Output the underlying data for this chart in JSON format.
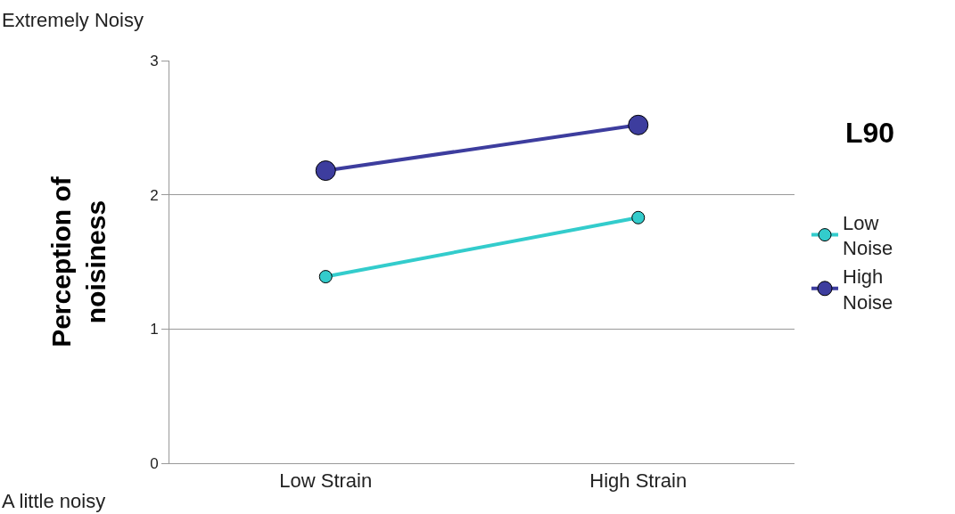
{
  "chart_data": {
    "type": "line",
    "ylabel": "Perception of noisiness",
    "categories": [
      "Low Strain",
      "High Strain"
    ],
    "series": [
      {
        "name": "Low Noise",
        "color": "#33cccc",
        "values": [
          1.39,
          1.83
        ]
      },
      {
        "name": "High Noise",
        "color": "#3d3d9e",
        "values": [
          2.18,
          2.52
        ]
      }
    ],
    "ylim": [
      0,
      3
    ],
    "yticks": [
      0,
      1,
      2,
      3
    ],
    "grid": "y",
    "legend": "right",
    "marker": "circle",
    "line_style": "solid",
    "annotations": [
      "Extremely Noisy",
      "A little noisy",
      "L90"
    ]
  }
}
